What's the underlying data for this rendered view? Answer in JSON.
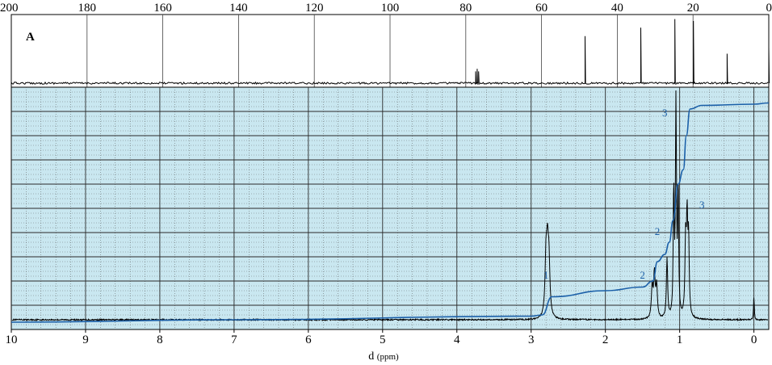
{
  "chart_data": [
    {
      "type": "line",
      "panel": "13C",
      "panel_label": "A",
      "axis": "top",
      "xlim": [
        200,
        0
      ],
      "x_ticks": [
        "200",
        "180",
        "160",
        "140",
        "120",
        "100",
        "80",
        "60",
        "40",
        "20",
        "0"
      ],
      "peaks": [
        {
          "x": 77.4,
          "height": 0.18
        },
        {
          "x": 77.0,
          "height": 0.22
        },
        {
          "x": 76.6,
          "height": 0.18
        },
        {
          "x": 48.5,
          "height": 0.72
        },
        {
          "x": 33.8,
          "height": 0.85
        },
        {
          "x": 24.8,
          "height": 0.98
        },
        {
          "x": 19.9,
          "height": 0.95
        },
        {
          "x": 11.0,
          "height": 0.45
        },
        {
          "x": 0.0,
          "height": 0.55
        }
      ]
    },
    {
      "type": "line",
      "panel": "1H",
      "axis": "bottom",
      "xlabel": "d",
      "xlabel_unit": "(ppm)",
      "xlim": [
        10,
        -0.2
      ],
      "x_ticks": [
        "10",
        "9",
        "8",
        "7",
        "6",
        "5",
        "4",
        "3",
        "2",
        "1",
        "0"
      ],
      "grid": true,
      "peaks": [
        {
          "x": 2.8,
          "height": 0.24,
          "width": 0.015
        },
        {
          "x": 2.78,
          "height": 0.26,
          "width": 0.015
        },
        {
          "x": 2.76,
          "height": 0.22,
          "width": 0.015
        },
        {
          "x": 1.37,
          "height": 0.14,
          "width": 0.012
        },
        {
          "x": 1.34,
          "height": 0.19,
          "width": 0.012
        },
        {
          "x": 1.31,
          "height": 0.14,
          "width": 0.012
        },
        {
          "x": 1.17,
          "height": 0.26,
          "width": 0.01
        },
        {
          "x": 1.08,
          "height": 0.55,
          "width": 0.008
        },
        {
          "x": 1.05,
          "height": 0.95,
          "width": 0.008
        },
        {
          "x": 1.02,
          "height": 0.55,
          "width": 0.008
        },
        {
          "x": 0.92,
          "height": 0.32,
          "width": 0.01
        },
        {
          "x": 0.9,
          "height": 0.4,
          "width": 0.01
        },
        {
          "x": 0.88,
          "height": 0.32,
          "width": 0.01
        },
        {
          "x": 0.0,
          "height": 0.1,
          "width": 0.006
        }
      ],
      "integration_curve": [
        {
          "x": 10.0,
          "y": 0.03
        },
        {
          "x": 7.0,
          "y": 0.04
        },
        {
          "x": 3.0,
          "y": 0.055
        },
        {
          "x": 2.85,
          "y": 0.06
        },
        {
          "x": 2.72,
          "y": 0.135
        },
        {
          "x": 2.0,
          "y": 0.16
        },
        {
          "x": 1.5,
          "y": 0.175
        },
        {
          "x": 1.36,
          "y": 0.2
        },
        {
          "x": 1.3,
          "y": 0.28
        },
        {
          "x": 1.2,
          "y": 0.31
        },
        {
          "x": 1.14,
          "y": 0.36
        },
        {
          "x": 1.09,
          "y": 0.45
        },
        {
          "x": 1.02,
          "y": 0.6
        },
        {
          "x": 0.95,
          "y": 0.66
        },
        {
          "x": 0.91,
          "y": 0.8
        },
        {
          "x": 0.86,
          "y": 0.91
        },
        {
          "x": 0.7,
          "y": 0.925
        },
        {
          "x": 0.0,
          "y": 0.93
        },
        {
          "x": -0.2,
          "y": 0.935
        }
      ],
      "integration_labels": [
        {
          "text": "1",
          "x": 2.8,
          "y": 0.21
        },
        {
          "text": "2",
          "x": 1.5,
          "y": 0.21
        },
        {
          "text": "2",
          "x": 1.3,
          "y": 0.39
        },
        {
          "text": "3",
          "x": 1.2,
          "y": 0.88
        },
        {
          "text": "3",
          "x": 0.7,
          "y": 0.5
        }
      ]
    }
  ],
  "colors": {
    "panel_fill": "#c9e7f0",
    "integral": "#1a5fa8",
    "label": "#1a5fa8",
    "spectrum": "#000000",
    "grid": "#2a2a2a"
  }
}
